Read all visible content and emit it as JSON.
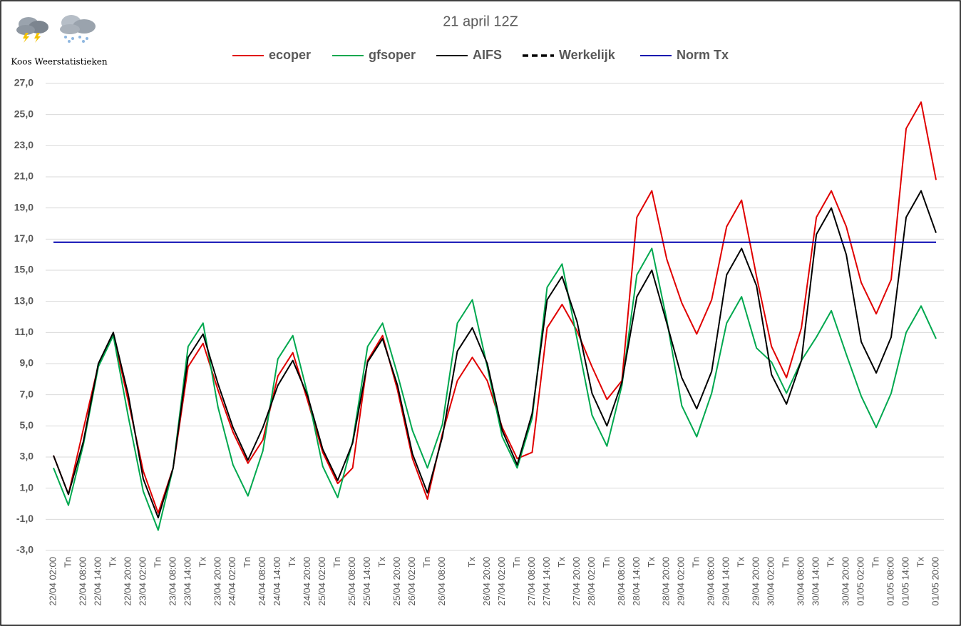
{
  "chart_data": {
    "type": "line",
    "title": "21 april 12Z",
    "subtitle": "Koos Weerstatistieken",
    "categories": [
      "22/04 02:00",
      "Tn",
      "22/04 08:00",
      "22/04 14:00",
      "Tx",
      "22/04 20:00",
      "23/04 02:00",
      "Tn",
      "23/04 08:00",
      "23/04 14:00",
      "Tx",
      "23/04 20:00",
      "24/04 02:00",
      "Tn",
      "24/04 08:00",
      "24/04 14:00",
      "Tx",
      "24/04 20:00",
      "25/04 02:00",
      "Tn",
      "25/04 08:00",
      "25/04 14:00",
      "Tx",
      "25/04 20:00",
      "26/04 02:00",
      "Tn",
      "26/04 08:00",
      null,
      "Tx",
      "26/04 20:00",
      "27/04 02:00",
      "Tn",
      "27/04 08:00",
      "27/04 14:00",
      "Tx",
      "27/04 20:00",
      "28/04 02:00",
      "Tn",
      "28/04 08:00",
      "28/04 14:00",
      "Tx",
      "28/04 20:00",
      "29/04 02:00",
      "Tn",
      "29/04 08:00",
      "29/04 14:00",
      "Tx",
      "29/04 20:00",
      "30/04 02:00",
      "Tn",
      "30/04 08:00",
      "30/04 14:00",
      "Tx",
      "30/04 20:00",
      "01/05 02:00",
      "Tn",
      "01/05 08:00",
      "01/05 14:00",
      "Tx",
      "01/05 20:00"
    ],
    "series": [
      {
        "name": "ecoper",
        "color": "#e00000",
        "values": [
          3.1,
          0.6,
          4.8,
          8.9,
          10.9,
          6.6,
          2.1,
          -0.6,
          2.3,
          8.8,
          10.3,
          7.3,
          4.6,
          2.6,
          4.1,
          8.2,
          9.7,
          6.6,
          3.3,
          1.3,
          2.3,
          9.2,
          10.8,
          7.3,
          2.9,
          0.3,
          4.5,
          7.9,
          9.4,
          7.9,
          4.9,
          2.9,
          3.3,
          11.3,
          12.8,
          11.1,
          8.8,
          6.7,
          7.9,
          18.4,
          20.1,
          15.7,
          12.9,
          10.9,
          13.1,
          17.8,
          19.5,
          14.6,
          10.1,
          8.1,
          11.3,
          18.4,
          20.1,
          17.8,
          14.2,
          12.2,
          14.4,
          24.1,
          25.8,
          20.8
        ]
      },
      {
        "name": "gfsoper",
        "color": "#00a84f",
        "values": [
          2.3,
          -0.1,
          3.8,
          8.8,
          10.8,
          5.6,
          0.8,
          -1.7,
          2.3,
          10.1,
          11.6,
          6.2,
          2.5,
          0.5,
          3.4,
          9.3,
          10.8,
          7.0,
          2.4,
          0.4,
          4.0,
          10.1,
          11.6,
          8.3,
          4.7,
          2.3,
          5.1,
          11.6,
          13.1,
          8.8,
          4.3,
          2.3,
          5.5,
          13.9,
          15.4,
          10.6,
          5.7,
          3.7,
          7.6,
          14.7,
          16.4,
          11.8,
          6.3,
          4.3,
          7.1,
          11.6,
          13.3,
          10.0,
          9.1,
          7.1,
          9.2,
          10.7,
          12.4,
          9.6,
          6.9,
          4.9,
          7.1,
          11.0,
          12.7,
          10.6
        ]
      },
      {
        "name": "AIFS",
        "color": "#000000",
        "values": [
          3.1,
          0.6,
          4.0,
          9.0,
          11.0,
          7.0,
          1.6,
          -0.9,
          2.3,
          9.4,
          10.9,
          7.7,
          4.9,
          2.8,
          4.9,
          7.6,
          9.2,
          6.9,
          3.5,
          1.5,
          3.9,
          9.1,
          10.6,
          7.6,
          3.2,
          0.7,
          4.3,
          9.8,
          11.3,
          9.0,
          4.7,
          2.5,
          5.8,
          13.1,
          14.6,
          11.7,
          7.1,
          5.0,
          7.8,
          13.3,
          15.0,
          11.6,
          8.1,
          6.1,
          8.5,
          14.7,
          16.4,
          14.0,
          8.3,
          6.4,
          9.2,
          17.3,
          19.0,
          16.0,
          10.4,
          8.4,
          10.7,
          18.4,
          20.1,
          17.4
        ]
      },
      {
        "name": "Werkelijk",
        "color": "#000000",
        "dashed": true,
        "values": [
          null,
          null,
          null,
          null,
          null,
          null,
          null,
          null,
          null,
          null,
          null,
          null,
          null,
          null,
          null,
          null,
          null,
          null,
          null,
          null,
          null,
          null,
          null,
          null,
          null,
          null,
          null,
          null,
          null,
          null,
          null,
          null,
          null,
          null,
          null,
          null,
          null,
          null,
          null,
          null,
          null,
          null,
          null,
          null,
          null,
          null,
          null,
          null,
          null,
          null,
          null,
          null,
          null,
          null,
          null,
          null,
          null,
          null,
          null,
          null
        ]
      },
      {
        "name": "Norm Tx",
        "color": "#0000b0",
        "values": [
          16.8,
          16.8,
          16.8,
          16.8,
          16.8,
          16.8,
          16.8,
          16.8,
          16.8,
          16.8,
          16.8,
          16.8,
          16.8,
          16.8,
          16.8,
          16.8,
          16.8,
          16.8,
          16.8,
          16.8,
          16.8,
          16.8,
          16.8,
          16.8,
          16.8,
          16.8,
          16.8,
          16.8,
          16.8,
          16.8,
          16.8,
          16.8,
          16.8,
          16.8,
          16.8,
          16.8,
          16.8,
          16.8,
          16.8,
          16.8,
          16.8,
          16.8,
          16.8,
          16.8,
          16.8,
          16.8,
          16.8,
          16.8,
          16.8,
          16.8,
          16.8,
          16.8,
          16.8,
          16.8,
          16.8,
          16.8,
          16.8,
          16.8,
          16.8,
          16.8
        ]
      }
    ],
    "ylim": [
      -3,
      27
    ],
    "yticks": [
      {
        "value": -3,
        "label": "-3,0"
      },
      {
        "value": -1,
        "label": "-1,0"
      },
      {
        "value": 1,
        "label": "1,0"
      },
      {
        "value": 3,
        "label": "3,0"
      },
      {
        "value": 5,
        "label": "5,0"
      },
      {
        "value": 7,
        "label": "7,0"
      },
      {
        "value": 9,
        "label": "9,0"
      },
      {
        "value": 11,
        "label": "11,0"
      },
      {
        "value": 13,
        "label": "13,0"
      },
      {
        "value": 15,
        "label": "15,0"
      },
      {
        "value": 17,
        "label": "17,0"
      },
      {
        "value": 19,
        "label": "19,0"
      },
      {
        "value": 21,
        "label": "21,0"
      },
      {
        "value": 23,
        "label": "23,0"
      },
      {
        "value": 25,
        "label": "25,0"
      },
      {
        "value": 27,
        "label": "27,0"
      }
    ],
    "grid": true,
    "legend": "top"
  }
}
